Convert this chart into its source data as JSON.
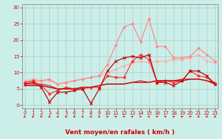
{
  "background_color": "#cceee8",
  "grid_color": "#aacccc",
  "xlabel": "Vent moyen/en rafales ( km/h )",
  "xlabel_color": "#cc0000",
  "xlabel_fontsize": 6.5,
  "yticks": [
    0,
    5,
    10,
    15,
    20,
    25,
    30
  ],
  "xticks": [
    0,
    1,
    2,
    3,
    4,
    5,
    6,
    7,
    8,
    9,
    10,
    11,
    12,
    13,
    14,
    15,
    16,
    17,
    18,
    19,
    20,
    21,
    22,
    23
  ],
  "ylim": [
    -1,
    31
  ],
  "xlim": [
    -0.3,
    23.3
  ],
  "tick_color": "#cc0000",
  "tick_fontsize": 5.0,
  "spine_color": "#888888",
  "series": [
    {
      "x": [
        0,
        1,
        2,
        3,
        4,
        5,
        6,
        7,
        8,
        9,
        10,
        11,
        12,
        13,
        14,
        15,
        16,
        17,
        18,
        19,
        20,
        21,
        22,
        23
      ],
      "y": [
        7.5,
        8.0,
        7.5,
        7.5,
        6.5,
        7.0,
        7.5,
        8.0,
        8.5,
        9.0,
        10.0,
        11.0,
        12.0,
        13.0,
        13.5,
        13.0,
        13.5,
        13.5,
        14.0,
        14.0,
        14.5,
        15.5,
        13.5,
        13.0
      ],
      "color": "#ffaaaa",
      "lw": 0.9,
      "marker": "o",
      "ms": 2.0,
      "zorder": 2
    },
    {
      "x": [
        0,
        1,
        2,
        3,
        4,
        5,
        6,
        7,
        8,
        9,
        10,
        11,
        12,
        13,
        14,
        15,
        16,
        17,
        18,
        19,
        20,
        21,
        22,
        23
      ],
      "y": [
        7.0,
        7.5,
        7.5,
        8.0,
        6.5,
        7.0,
        7.5,
        8.0,
        8.5,
        9.0,
        12.5,
        18.5,
        24.0,
        25.0,
        19.5,
        26.5,
        18.0,
        18.0,
        14.5,
        14.5,
        15.0,
        17.5,
        15.5,
        13.5
      ],
      "color": "#ff8888",
      "lw": 0.9,
      "marker": "o",
      "ms": 2.0,
      "zorder": 2
    },
    {
      "x": [
        0,
        1,
        2,
        3,
        4,
        5,
        6,
        7,
        8,
        9,
        10,
        11,
        12,
        13,
        14,
        15,
        16,
        17,
        18,
        19,
        20,
        21,
        22,
        23
      ],
      "y": [
        7.0,
        7.5,
        6.0,
        3.5,
        4.5,
        5.5,
        5.0,
        5.0,
        5.5,
        5.5,
        9.0,
        8.5,
        8.5,
        13.5,
        15.5,
        14.0,
        7.0,
        7.5,
        7.0,
        7.5,
        10.5,
        9.0,
        8.5,
        6.5
      ],
      "color": "#ff3333",
      "lw": 0.9,
      "marker": "D",
      "ms": 2.0,
      "zorder": 3
    },
    {
      "x": [
        0,
        1,
        2,
        3,
        4,
        5,
        6,
        7,
        8,
        9,
        10,
        11,
        12,
        13,
        14,
        15,
        16,
        17,
        18,
        19,
        20,
        21,
        22,
        23
      ],
      "y": [
        6.0,
        6.0,
        6.0,
        5.5,
        5.0,
        5.0,
        5.0,
        5.5,
        5.5,
        6.0,
        6.5,
        6.5,
        6.5,
        7.0,
        7.0,
        7.0,
        7.5,
        7.5,
        7.5,
        7.5,
        8.0,
        8.0,
        7.5,
        6.5
      ],
      "color": "#cc0000",
      "lw": 1.1,
      "marker": null,
      "ms": 0,
      "zorder": 4
    },
    {
      "x": [
        0,
        1,
        2,
        3,
        4,
        5,
        6,
        7,
        8,
        9,
        10,
        11,
        12,
        13,
        14,
        15,
        16,
        17,
        18,
        19,
        20,
        21,
        22,
        23
      ],
      "y": [
        6.5,
        6.5,
        6.5,
        6.0,
        5.0,
        5.0,
        5.0,
        5.5,
        5.5,
        6.0,
        6.5,
        6.5,
        6.5,
        7.0,
        7.5,
        7.0,
        7.5,
        7.5,
        7.5,
        8.0,
        8.0,
        8.0,
        7.5,
        7.0
      ],
      "color": "#dd1111",
      "lw": 0.8,
      "marker": null,
      "ms": 0,
      "zorder": 4
    },
    {
      "x": [
        0,
        1,
        2,
        3,
        4,
        5,
        6,
        7,
        8,
        9,
        10,
        11,
        12,
        13,
        14,
        15,
        16,
        17,
        18,
        19,
        20,
        21,
        22,
        23
      ],
      "y": [
        6.5,
        7.0,
        5.5,
        1.0,
        4.0,
        4.0,
        4.5,
        5.0,
        0.5,
        5.0,
        10.5,
        13.5,
        14.5,
        15.0,
        14.5,
        15.5,
        7.0,
        7.0,
        6.0,
        7.5,
        10.5,
        10.5,
        9.0,
        6.5
      ],
      "color": "#bb0000",
      "lw": 0.9,
      "marker": "x",
      "ms": 2.5,
      "zorder": 3
    }
  ],
  "arrows": {
    "x": [
      0,
      1,
      2,
      3,
      4,
      5,
      6,
      7,
      8,
      9,
      10,
      11,
      12,
      13,
      14,
      15,
      16,
      17,
      18,
      19,
      20,
      21,
      22,
      23
    ],
    "angles_deg": [
      225,
      225,
      225,
      225,
      225,
      225,
      225,
      225,
      225,
      45,
      45,
      45,
      45,
      45,
      45,
      45,
      45,
      45,
      45,
      45,
      45,
      225,
      225,
      225
    ],
    "color": "#cc0000",
    "size": 0.22
  }
}
